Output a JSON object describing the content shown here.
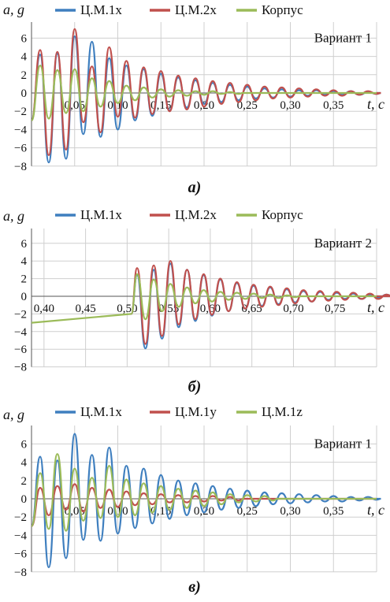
{
  "colors": {
    "blue": "#3f7fbf",
    "red": "#c0504d",
    "green": "#9bbb59"
  },
  "chart_data": [
    {
      "type": "line",
      "title": "",
      "xlabel": "t, c",
      "ylabel": "a, g",
      "annotation": "Вариант 1",
      "caption": "а)",
      "xlim": [
        0,
        0.4
      ],
      "ylim": [
        -8,
        8
      ],
      "x_ticks": [
        "0,05",
        "0,10",
        "0,15",
        "0,20",
        "0,25",
        "0,30",
        "0,35"
      ],
      "x_tick_values": [
        0.05,
        0.1,
        0.15,
        0.2,
        0.25,
        0.3,
        0.35
      ],
      "y_ticks": [
        "6",
        "4",
        "2",
        "0",
        "−2",
        "−4",
        "−6",
        "−8"
      ],
      "y_tick_values": [
        6,
        4,
        2,
        0,
        -2,
        -4,
        -6,
        -8
      ],
      "grid": true,
      "legend": "top",
      "series": [
        {
          "name": "Ц.М.1x",
          "color": "blue",
          "t0": 0.005,
          "amps": [
            4.2,
            -7.6,
            4.3,
            -7.2,
            6.2,
            -4.5,
            5.6,
            -4.8,
            3.8,
            -4.0,
            3.0,
            -3.0,
            2.6,
            -2.5,
            2.1,
            -1.9,
            1.7,
            -1.6,
            1.4,
            -1.2,
            1.1,
            -1.0,
            0.9,
            -0.8,
            0.7,
            -0.6,
            0.5,
            -0.5,
            0.4,
            -0.4,
            0.3,
            -0.3,
            0.3,
            -0.2,
            0.2,
            -0.2,
            0.2,
            -0.2,
            0.1,
            -0.1
          ]
        },
        {
          "name": "Ц.М.2x",
          "color": "red",
          "t0": 0.005,
          "amps": [
            4.7,
            -6.8,
            4.5,
            -6.2,
            7.0,
            -3.2,
            2.9,
            -4.3,
            5.0,
            -2.6,
            3.5,
            -2.7,
            2.8,
            -2.3,
            2.4,
            -2.0,
            1.9,
            -1.8,
            1.6,
            -1.5,
            1.3,
            -1.2,
            1.1,
            -1.0,
            0.9,
            -0.8,
            0.7,
            -0.6,
            0.6,
            -0.5,
            0.5,
            -0.4,
            0.4,
            -0.3,
            0.3,
            -0.3,
            0.2,
            -0.2,
            0.2,
            -0.1
          ]
        },
        {
          "name": "Корпус",
          "color": "green",
          "t0": 0.005,
          "amps": [
            3.0,
            -2.8,
            2.5,
            -2.2,
            2.6,
            -2.0,
            1.6,
            -1.5,
            1.3,
            -1.1,
            0.8,
            -0.8,
            0.6,
            -0.5,
            0.4,
            -0.4,
            0.3,
            -0.3,
            0.2,
            -0.2,
            0.2,
            -0.1,
            0.1,
            -0.1
          ]
        }
      ]
    },
    {
      "type": "line",
      "title": "",
      "xlabel": "t, c",
      "ylabel": "a, g",
      "annotation": "Вариант 2",
      "caption": "б)",
      "xlim": [
        0.385,
        0.8
      ],
      "ylim": [
        -8,
        8
      ],
      "x_ticks": [
        "0,40",
        "0,45",
        "0,50",
        "0,55",
        "0,60",
        "0,65",
        "0,70",
        "0,75"
      ],
      "x_tick_values": [
        0.4,
        0.45,
        0.5,
        0.55,
        0.6,
        0.65,
        0.7,
        0.75
      ],
      "y_ticks": [
        "6",
        "4",
        "2",
        "0",
        "−2",
        "−4",
        "−6",
        "−8"
      ],
      "y_tick_values": [
        6,
        4,
        2,
        0,
        -2,
        -4,
        -6,
        -8
      ],
      "grid": true,
      "legend": "top",
      "baseline": {
        "x": [
          0.385,
          0.505
        ],
        "y": [
          -3.0,
          -2.0
        ]
      },
      "series": [
        {
          "name": "Ц.М.1x",
          "color": "blue",
          "t0": 0.507,
          "amps": [
            2.4,
            -5.9,
            3.0,
            -4.8,
            3.7,
            -3.5,
            3.0,
            -2.8,
            2.4,
            -2.2,
            1.9,
            -1.7,
            1.5,
            -1.4,
            1.2,
            -1.1,
            1.0,
            -0.9,
            0.8,
            -0.7,
            0.6,
            -0.6,
            0.5,
            -0.4,
            0.4,
            -0.3,
            0.3,
            -0.3,
            0.2,
            -0.2,
            0.2,
            -0.2,
            0.1,
            -0.1
          ]
        },
        {
          "name": "Ц.М.2x",
          "color": "red",
          "t0": 0.507,
          "amps": [
            3.2,
            -5.4,
            3.5,
            -4.5,
            4.0,
            -3.2,
            3.0,
            -2.6,
            2.5,
            -2.1,
            2.0,
            -1.7,
            1.6,
            -1.4,
            1.3,
            -1.2,
            1.1,
            -1.0,
            0.9,
            -0.8,
            0.7,
            -0.6,
            0.6,
            -0.5,
            0.5,
            -0.4,
            0.4,
            -0.3,
            0.3,
            -0.3,
            0.2,
            -0.2,
            0.2,
            -0.1
          ]
        },
        {
          "name": "Корпус",
          "color": "green",
          "t0": 0.507,
          "amps": [
            2.5,
            -2.6,
            1.9,
            -1.7,
            1.4,
            -1.2,
            1.0,
            -0.8,
            0.7,
            -0.6,
            0.5,
            -0.4,
            0.4,
            -0.3,
            0.3,
            -0.2,
            0.2,
            -0.2,
            0.1,
            -0.1
          ]
        }
      ]
    },
    {
      "type": "line",
      "title": "",
      "xlabel": "t, c",
      "ylabel": "a, g",
      "annotation": "Вариант 1",
      "caption": "в)",
      "xlim": [
        0,
        0.4
      ],
      "ylim": [
        -8,
        8
      ],
      "x_ticks": [
        "0,05",
        "0,10",
        "0,15",
        "0,20",
        "0,25",
        "0,30",
        "0,35"
      ],
      "x_tick_values": [
        0.05,
        0.1,
        0.15,
        0.2,
        0.25,
        0.3,
        0.35
      ],
      "y_ticks": [
        "6",
        "4",
        "2",
        "0",
        "−2",
        "−4",
        "−6",
        "−8"
      ],
      "y_tick_values": [
        6,
        4,
        2,
        0,
        -2,
        -4,
        -6,
        -8
      ],
      "grid": true,
      "legend": "top",
      "series": [
        {
          "name": "Ц.М.1x",
          "color": "blue",
          "t0": 0.005,
          "amps": [
            4.6,
            -7.5,
            4.2,
            -6.5,
            7.1,
            -4.5,
            4.8,
            -4.6,
            5.6,
            -3.8,
            3.6,
            -3.2,
            3.3,
            -2.7,
            2.6,
            -2.2,
            2.0,
            -1.8,
            1.7,
            -1.5,
            1.4,
            -1.2,
            1.1,
            -1.0,
            0.9,
            -0.8,
            0.7,
            -0.6,
            0.6,
            -0.5,
            0.5,
            -0.4,
            0.4,
            -0.3,
            0.3,
            -0.3,
            0.2,
            -0.2,
            0.2,
            -0.1
          ]
        },
        {
          "name": "Ц.М.1y",
          "color": "red",
          "t0": 0.005,
          "amps": [
            1.2,
            -1.8,
            1.4,
            -1.2,
            1.6,
            -1.4,
            1.2,
            -1.0,
            1.0,
            -0.9,
            0.8,
            -0.7,
            0.6,
            -0.6,
            0.5,
            -0.4,
            0.4,
            -0.4,
            0.3,
            -0.3,
            0.3,
            -0.2,
            0.2,
            -0.2
          ]
        },
        {
          "name": "Ц.М.1z",
          "color": "green",
          "t0": 0.005,
          "amps": [
            2.8,
            -3.3,
            4.9,
            -3.5,
            3.3,
            -2.4,
            2.3,
            -2.1,
            3.6,
            -2.0,
            2.1,
            -1.8,
            1.7,
            -1.5,
            1.4,
            -1.2,
            1.1,
            -1.0,
            0.9,
            -0.8,
            0.7,
            -0.6,
            0.5,
            -0.4,
            0.4,
            -0.3,
            0.3,
            -0.2
          ]
        }
      ]
    }
  ]
}
